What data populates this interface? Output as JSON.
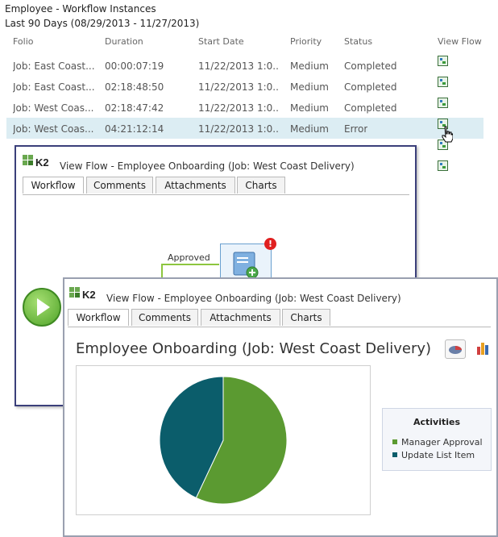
{
  "header": {
    "title": "Employee - Workflow Instances",
    "range": "Last 90 Days (08/29/2013 - 11/27/2013)"
  },
  "grid": {
    "columns": [
      "Folio",
      "Duration",
      "Start Date",
      "Priority",
      "Status",
      "View Flow"
    ],
    "rows": [
      {
        "folio": "Job: East Coast...",
        "duration": "00:00:07:19",
        "start": "11/22/2013 1:0...",
        "priority": "Medium",
        "status": "Completed",
        "icon": "view-flow-icon"
      },
      {
        "folio": "Job: East Coast...",
        "duration": "02:18:48:50",
        "start": "11/22/2013 1:0...",
        "priority": "Medium",
        "status": "Completed",
        "icon": "view-flow-icon"
      },
      {
        "folio": "Job: West Coas...",
        "duration": "02:18:47:42",
        "start": "11/22/2013 1:0...",
        "priority": "Medium",
        "status": "Completed",
        "icon": "view-flow-icon"
      },
      {
        "folio": "Job: West Coas...",
        "duration": "04:21:12:14",
        "start": "11/22/2013 1:0...",
        "priority": "Medium",
        "status": "Error",
        "icon": "view-flow-icon"
      }
    ]
  },
  "panel1": {
    "logo": "K2",
    "title": "View Flow - Employee Onboarding (Job: West Coast Delivery)",
    "tabs": [
      "Workflow",
      "Comments",
      "Attachments",
      "Charts"
    ],
    "approved_label": "Approved",
    "error_badge": "!"
  },
  "panel2": {
    "logo": "K2",
    "title": "View Flow - Employee Onboarding (Job: West Coast Delivery)",
    "tabs": [
      "Workflow",
      "Comments",
      "Attachments",
      "Charts"
    ],
    "chart_heading": "Employee Onboarding (Job: West Coast Delivery)"
  },
  "chart_data": {
    "type": "pie",
    "title": "",
    "legend_title": "Activities",
    "legend_position": "right",
    "series": [
      {
        "name": "Manager Approval",
        "value": 57,
        "color": "#5b9a31"
      },
      {
        "name": "Update List Item",
        "value": 43,
        "color": "#0b5d6b"
      }
    ]
  }
}
